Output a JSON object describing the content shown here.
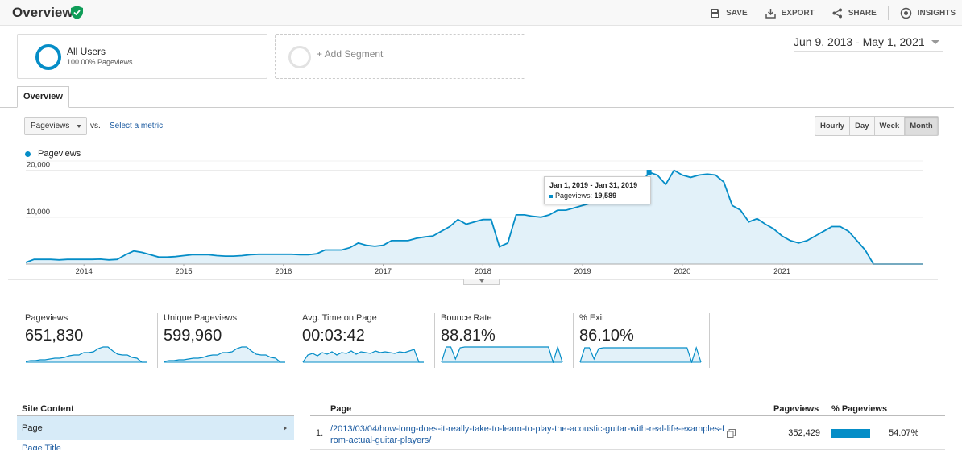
{
  "header": {
    "title": "Overview",
    "actions": [
      {
        "label": "SAVE",
        "icon": "save-icon"
      },
      {
        "label": "EXPORT",
        "icon": "export-icon"
      },
      {
        "label": "SHARE",
        "icon": "share-icon"
      },
      {
        "label": "INSIGHTS",
        "icon": "insights-icon"
      }
    ]
  },
  "segments": {
    "all_users": {
      "name": "All Users",
      "sub": "100.00% Pageviews"
    },
    "add_label": "+ Add Segment"
  },
  "date_range": "Jun 9, 2013 - May 1, 2021",
  "tab": "Overview",
  "controls": {
    "metric": "Pageviews",
    "vs": "vs.",
    "select_metric": "Select a metric",
    "granularity": [
      "Hourly",
      "Day",
      "Week",
      "Month"
    ],
    "granularity_active": "Month"
  },
  "colors": {
    "accent": "#058dc7",
    "fill": "#e2f1f9"
  },
  "chart_data": {
    "type": "area",
    "series": [
      {
        "name": "Pageviews",
        "values": [
          350,
          1000,
          1000,
          1000,
          900,
          1000,
          1000,
          1000,
          1000,
          1050,
          900,
          1000,
          2000,
          2800,
          2500,
          2000,
          1500,
          1500,
          1600,
          1800,
          2000,
          2000,
          2000,
          1800,
          1700,
          1700,
          1800,
          2000,
          2100,
          2100,
          2100,
          2100,
          2100,
          2000,
          2000,
          2200,
          3000,
          3000,
          3000,
          3500,
          4500,
          4000,
          3800,
          4000,
          5000,
          5000,
          5000,
          5500,
          5800,
          6000,
          7000,
          8000,
          9500,
          8500,
          9000,
          9500,
          9500,
          3700,
          4500,
          10500,
          10500,
          10200,
          10000,
          10500,
          11500,
          11500,
          12000,
          12500,
          13000,
          13300,
          13700,
          15000,
          14500,
          15000,
          17000,
          19589,
          19000,
          17000,
          20000,
          19000,
          18500,
          19000,
          19200,
          19000,
          17500,
          12500,
          11500,
          9000,
          9700,
          8500,
          7500,
          6000,
          5000,
          4500,
          5000,
          6000,
          7000,
          8000,
          8000,
          7000,
          5000,
          3000,
          0,
          0,
          0,
          0,
          0,
          0,
          0
        ]
      }
    ],
    "x_labels": [
      "2014",
      "2015",
      "2016",
      "2017",
      "2018",
      "2019",
      "2020",
      "2021"
    ],
    "y_ticks": [
      "20,000",
      "10,000"
    ],
    "ylim": [
      0,
      22000
    ],
    "grid": true,
    "highlight": {
      "date": "Jan 1, 2019 - Jan 31, 2019",
      "label": "Pageviews:",
      "value": "19,589"
    }
  },
  "scorecards": [
    {
      "label": "Pageviews",
      "value": "651,830",
      "spark": [
        1,
        2,
        2,
        3,
        3,
        4,
        5,
        5,
        6,
        8,
        9,
        9,
        12,
        12,
        13,
        17,
        19,
        19,
        14,
        10,
        9,
        9,
        6,
        5,
        0,
        0
      ]
    },
    {
      "label": "Unique Pageviews",
      "value": "599,960",
      "spark": [
        1,
        2,
        2,
        3,
        3,
        4,
        5,
        5,
        6,
        8,
        9,
        9,
        12,
        12,
        13,
        17,
        19,
        19,
        14,
        10,
        9,
        9,
        6,
        5,
        0,
        0
      ]
    },
    {
      "label": "Avg. Time on Page",
      "value": "00:03:42",
      "spark": [
        0,
        9,
        11,
        8,
        12,
        10,
        13,
        9,
        12,
        11,
        14,
        10,
        13,
        12,
        11,
        14,
        12,
        13,
        12,
        11,
        13,
        12,
        14,
        16,
        0,
        0
      ]
    },
    {
      "label": "Bounce Rate",
      "value": "88.81%",
      "spark": [
        0,
        19,
        19,
        4,
        18,
        19,
        19,
        19,
        19,
        19,
        19,
        19,
        19,
        19,
        19,
        19,
        19,
        19,
        19,
        19,
        19,
        19,
        19,
        19,
        0,
        19,
        0
      ]
    },
    {
      "label": "% Exit",
      "value": "86.10%",
      "spark": [
        0,
        18,
        18,
        4,
        17,
        18,
        18,
        18,
        18,
        18,
        18,
        18,
        18,
        18,
        18,
        18,
        18,
        18,
        18,
        18,
        18,
        18,
        18,
        18,
        0,
        18,
        0
      ]
    }
  ],
  "site_content": {
    "title": "Site Content",
    "selected": "Page",
    "next": "Page Title"
  },
  "table": {
    "headers": {
      "page": "Page",
      "pageviews": "Pageviews",
      "pct": "% Pageviews"
    },
    "rows": [
      {
        "num": "1.",
        "page": "/2013/03/04/how-long-does-it-really-take-to-learn-to-play-the-acoustic-guitar-with-real-life-examples-from-actual-guitar-players/",
        "pageviews": "352,429",
        "pct": "54.07%",
        "share": 0.5407
      }
    ]
  }
}
